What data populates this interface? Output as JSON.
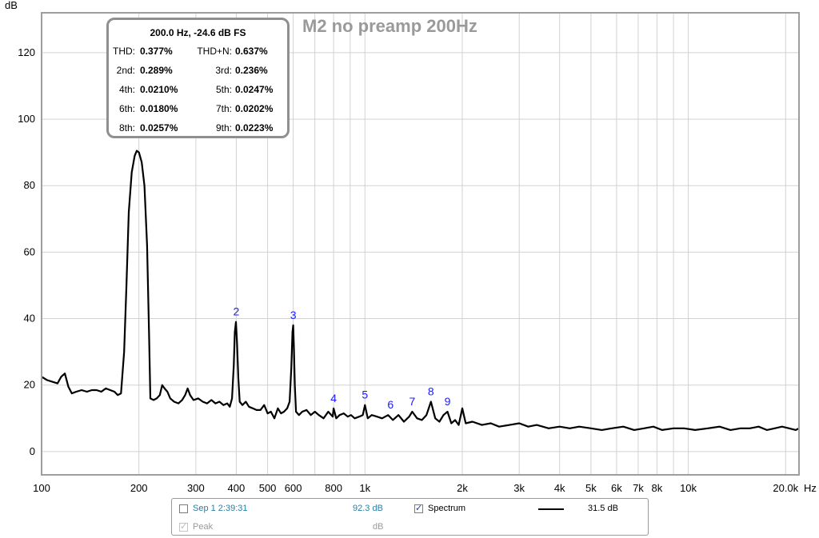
{
  "chart_data": {
    "type": "line",
    "title": "M2 no preamp 200Hz",
    "ylabel": "dB",
    "xunit": "Hz",
    "xscale": "log",
    "xlim": [
      100,
      22000
    ],
    "ylim": [
      -7,
      132
    ],
    "yticks": [
      0,
      20,
      40,
      60,
      80,
      100,
      120
    ],
    "xticks": [
      {
        "v": 100,
        "label": "100"
      },
      {
        "v": 200,
        "label": "200"
      },
      {
        "v": 300,
        "label": "300"
      },
      {
        "v": 400,
        "label": "400"
      },
      {
        "v": 500,
        "label": "500"
      },
      {
        "v": 600,
        "label": "600"
      },
      {
        "v": 800,
        "label": "800"
      },
      {
        "v": 1000,
        "label": "1k"
      },
      {
        "v": 2000,
        "label": "2k"
      },
      {
        "v": 3000,
        "label": "3k"
      },
      {
        "v": 4000,
        "label": "4k"
      },
      {
        "v": 5000,
        "label": "5k"
      },
      {
        "v": 6000,
        "label": "6k"
      },
      {
        "v": 7000,
        "label": "7k"
      },
      {
        "v": 8000,
        "label": "8k"
      },
      {
        "v": 10000,
        "label": "10k"
      },
      {
        "v": 20000,
        "label": "20.0k"
      }
    ],
    "extra_vgrid": [
      700,
      900,
      9000
    ],
    "grid": true,
    "series": [
      {
        "name": "Spectrum",
        "color": "#000000",
        "points": [
          [
            100,
            22.5
          ],
          [
            104,
            21.5
          ],
          [
            108,
            21
          ],
          [
            112,
            20.5
          ],
          [
            115,
            22.5
          ],
          [
            118,
            23.5
          ],
          [
            121,
            19.5
          ],
          [
            124,
            17.5
          ],
          [
            128,
            18
          ],
          [
            133,
            18.5
          ],
          [
            138,
            18
          ],
          [
            143,
            18.5
          ],
          [
            148,
            18.5
          ],
          [
            153,
            18
          ],
          [
            158,
            19
          ],
          [
            163,
            18.5
          ],
          [
            168,
            18
          ],
          [
            172,
            17
          ],
          [
            176,
            17.5
          ],
          [
            180,
            30
          ],
          [
            183,
            50
          ],
          [
            186,
            72
          ],
          [
            190,
            84
          ],
          [
            194,
            89
          ],
          [
            197,
            90.5
          ],
          [
            200,
            90
          ],
          [
            204,
            87
          ],
          [
            208,
            80
          ],
          [
            212,
            62
          ],
          [
            215,
            35
          ],
          [
            217,
            16
          ],
          [
            222,
            15.5
          ],
          [
            227,
            16
          ],
          [
            232,
            17
          ],
          [
            236,
            20
          ],
          [
            240,
            19
          ],
          [
            245,
            18
          ],
          [
            250,
            16
          ],
          [
            257,
            15
          ],
          [
            265,
            14.5
          ],
          [
            272,
            15.5
          ],
          [
            278,
            17
          ],
          [
            283,
            19
          ],
          [
            288,
            17
          ],
          [
            295,
            15.5
          ],
          [
            305,
            16
          ],
          [
            315,
            15
          ],
          [
            325,
            14.5
          ],
          [
            335,
            15.5
          ],
          [
            345,
            14.5
          ],
          [
            355,
            15
          ],
          [
            365,
            14
          ],
          [
            375,
            14.5
          ],
          [
            382,
            13.5
          ],
          [
            388,
            16
          ],
          [
            393,
            26
          ],
          [
            396,
            36
          ],
          [
            399,
            39
          ],
          [
            402,
            33
          ],
          [
            406,
            22
          ],
          [
            410,
            15
          ],
          [
            418,
            14
          ],
          [
            428,
            15
          ],
          [
            438,
            13.5
          ],
          [
            450,
            13
          ],
          [
            462,
            12.5
          ],
          [
            475,
            12.5
          ],
          [
            488,
            14
          ],
          [
            500,
            11.5
          ],
          [
            512,
            12
          ],
          [
            525,
            10
          ],
          [
            538,
            13
          ],
          [
            550,
            11.5
          ],
          [
            562,
            12
          ],
          [
            575,
            13
          ],
          [
            585,
            15
          ],
          [
            592,
            25
          ],
          [
            597,
            36
          ],
          [
            600,
            38
          ],
          [
            603,
            31
          ],
          [
            607,
            20
          ],
          [
            612,
            12
          ],
          [
            625,
            11
          ],
          [
            640,
            12
          ],
          [
            660,
            12.5
          ],
          [
            680,
            11
          ],
          [
            700,
            12
          ],
          [
            720,
            11
          ],
          [
            745,
            10
          ],
          [
            770,
            12
          ],
          [
            795,
            10.5
          ],
          [
            800,
            13
          ],
          [
            815,
            10
          ],
          [
            835,
            11
          ],
          [
            860,
            11.5
          ],
          [
            885,
            10.5
          ],
          [
            905,
            11
          ],
          [
            930,
            10
          ],
          [
            960,
            10.5
          ],
          [
            985,
            11
          ],
          [
            1000,
            14
          ],
          [
            1020,
            10
          ],
          [
            1050,
            11
          ],
          [
            1090,
            10.5
          ],
          [
            1130,
            10
          ],
          [
            1180,
            11
          ],
          [
            1220,
            9.5
          ],
          [
            1270,
            11
          ],
          [
            1320,
            9
          ],
          [
            1370,
            10.5
          ],
          [
            1400,
            12
          ],
          [
            1450,
            10
          ],
          [
            1500,
            9.5
          ],
          [
            1550,
            11
          ],
          [
            1600,
            15
          ],
          [
            1650,
            10
          ],
          [
            1700,
            9
          ],
          [
            1750,
            11
          ],
          [
            1800,
            12
          ],
          [
            1850,
            8.5
          ],
          [
            1900,
            9.5
          ],
          [
            1950,
            8
          ],
          [
            2000,
            13
          ],
          [
            2050,
            8.5
          ],
          [
            2150,
            9
          ],
          [
            2300,
            8
          ],
          [
            2450,
            8.5
          ],
          [
            2600,
            7.5
          ],
          [
            2800,
            8
          ],
          [
            3000,
            8.5
          ],
          [
            3200,
            7.5
          ],
          [
            3400,
            8
          ],
          [
            3700,
            7
          ],
          [
            4000,
            7.5
          ],
          [
            4300,
            7
          ],
          [
            4600,
            7.5
          ],
          [
            5000,
            7
          ],
          [
            5400,
            6.5
          ],
          [
            5800,
            7
          ],
          [
            6300,
            7.5
          ],
          [
            6800,
            6.5
          ],
          [
            7300,
            7
          ],
          [
            7800,
            7.5
          ],
          [
            8300,
            6.5
          ],
          [
            9000,
            7
          ],
          [
            9700,
            7
          ],
          [
            10500,
            6.5
          ],
          [
            11500,
            7
          ],
          [
            12500,
            7.5
          ],
          [
            13500,
            6.5
          ],
          [
            14500,
            7
          ],
          [
            15500,
            7
          ],
          [
            16500,
            7.5
          ],
          [
            17500,
            6.5
          ],
          [
            18500,
            7
          ],
          [
            19500,
            7.5
          ],
          [
            20500,
            7
          ],
          [
            21500,
            6.5
          ],
          [
            22000,
            7
          ]
        ]
      }
    ],
    "harmonic_markers": [
      {
        "label": "2",
        "x": 400,
        "y": 39
      },
      {
        "label": "3",
        "x": 600,
        "y": 38
      },
      {
        "label": "4",
        "x": 800,
        "y": 13
      },
      {
        "label": "5",
        "x": 1000,
        "y": 14
      },
      {
        "label": "6",
        "x": 1200,
        "y": 11
      },
      {
        "label": "7",
        "x": 1400,
        "y": 12
      },
      {
        "label": "8",
        "x": 1600,
        "y": 15
      },
      {
        "label": "9",
        "x": 1800,
        "y": 12
      }
    ]
  },
  "info_box": {
    "header": "200.0 Hz, -24.6 dB FS",
    "rows": [
      {
        "l1": "THD:",
        "v1": "0.377%",
        "l2": "THD+N:",
        "v2": "0.637%"
      },
      {
        "l1": "2nd:",
        "v1": "0.289%",
        "l2": "3rd:",
        "v2": "0.236%"
      },
      {
        "l1": "4th:",
        "v1": "0.0210%",
        "l2": "5th:",
        "v2": "0.0247%"
      },
      {
        "l1": "6th:",
        "v1": "0.0180%",
        "l2": "7th:",
        "v2": "0.0202%"
      },
      {
        "l1": "8th:",
        "v1": "0.0257%",
        "l2": "9th:",
        "v2": "0.0223%"
      }
    ]
  },
  "legend": {
    "measurement_label": "Sep 1 2:39:31",
    "measurement_checked": false,
    "measurement_db": "92.3 dB",
    "peak_label": "Peak",
    "peak_checked": true,
    "peak_db": "dB",
    "spectrum_label": "Spectrum",
    "spectrum_checked": true,
    "spectrum_db": "31.5 dB",
    "colors": {
      "measurement": "#2a7fa3",
      "disabled": "#9a9a9a"
    }
  }
}
